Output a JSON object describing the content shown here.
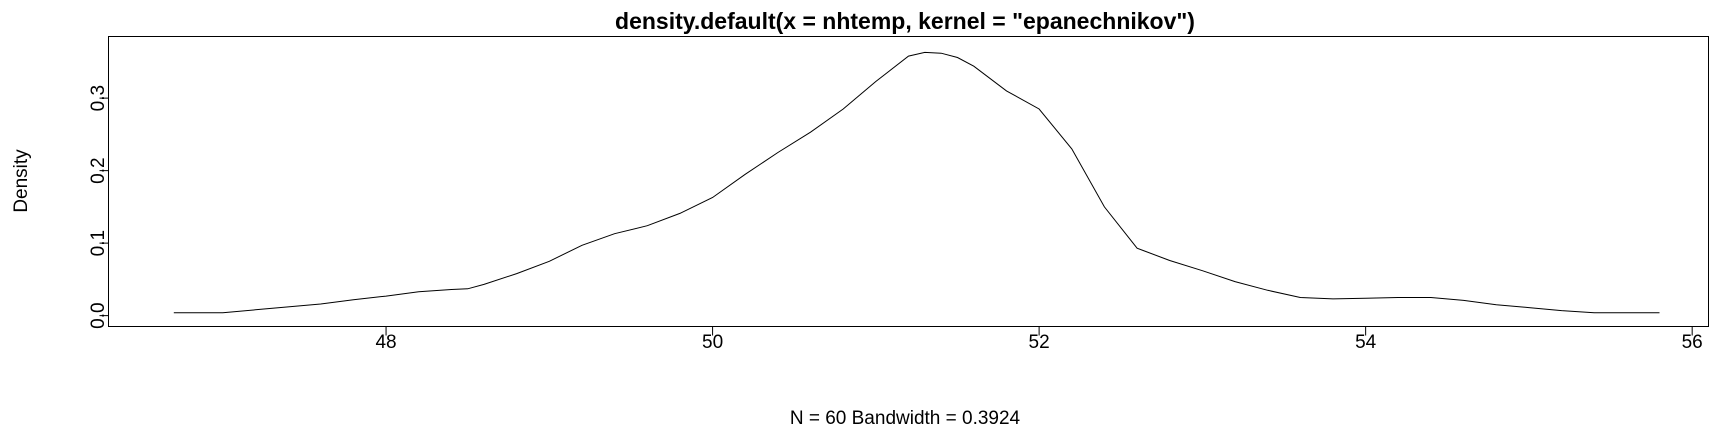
{
  "chart_data": {
    "type": "line",
    "title": "density.default(x = nhtemp, kernel = \"epanechnikov\")",
    "xlabel": "N = 60   Bandwidth = 0.3924",
    "ylabel": "Density",
    "xlim": [
      46.3,
      56.1
    ],
    "ylim": [
      -0.015,
      0.385
    ],
    "x_ticks": [
      48,
      50,
      52,
      54,
      56
    ],
    "x_tick_labels": [
      "48",
      "50",
      "52",
      "54",
      "56"
    ],
    "y_ticks": [
      0.0,
      0.1,
      0.2,
      0.3
    ],
    "y_tick_labels": [
      "0.0",
      "0.1",
      "0.2",
      "0.3"
    ],
    "grid": false,
    "series": [
      {
        "x": [
          46.7,
          46.9,
          47.0,
          47.2,
          47.4,
          47.6,
          47.8,
          48.0,
          48.2,
          48.4,
          48.5,
          48.6,
          48.8,
          49.0,
          49.2,
          49.4,
          49.6,
          49.8,
          50.0,
          50.2,
          50.4,
          50.6,
          50.8,
          51.0,
          51.2,
          51.3,
          51.4,
          51.5,
          51.6,
          51.8,
          52.0,
          52.2,
          52.4,
          52.6,
          52.8,
          53.0,
          53.2,
          53.4,
          53.6,
          53.8,
          54.0,
          54.2,
          54.4,
          54.6,
          54.8,
          55.0,
          55.2,
          55.4,
          55.6,
          55.8
        ],
        "y": [
          0.004,
          0.004,
          0.004,
          0.008,
          0.012,
          0.016,
          0.022,
          0.027,
          0.033,
          0.036,
          0.037,
          0.043,
          0.058,
          0.075,
          0.097,
          0.113,
          0.124,
          0.141,
          0.163,
          0.195,
          0.225,
          0.253,
          0.285,
          0.323,
          0.358,
          0.363,
          0.362,
          0.356,
          0.344,
          0.31,
          0.285,
          0.23,
          0.15,
          0.093,
          0.076,
          0.062,
          0.047,
          0.035,
          0.025,
          0.023,
          0.024,
          0.025,
          0.025,
          0.021,
          0.015,
          0.011,
          0.007,
          0.004,
          0.004,
          0.004
        ]
      }
    ]
  }
}
